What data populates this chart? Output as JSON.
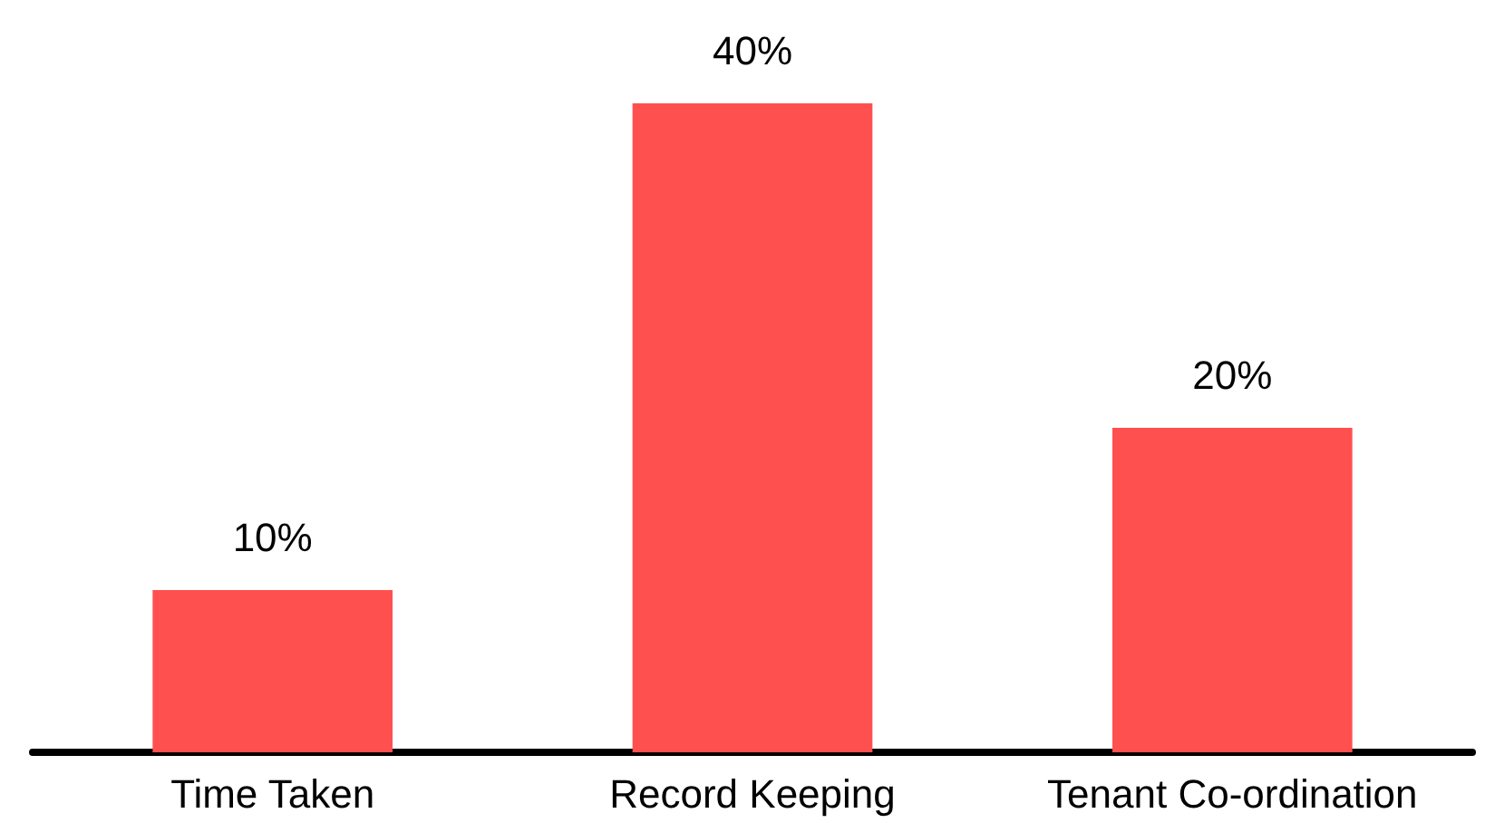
{
  "chart_data": {
    "type": "bar",
    "categories": [
      "Time Taken",
      "Record Keeping",
      "Tenant Co-ordination"
    ],
    "values": [
      10,
      40,
      20
    ],
    "value_labels": [
      "10%",
      "40%",
      "20%"
    ],
    "color": "#ff5050"
  }
}
